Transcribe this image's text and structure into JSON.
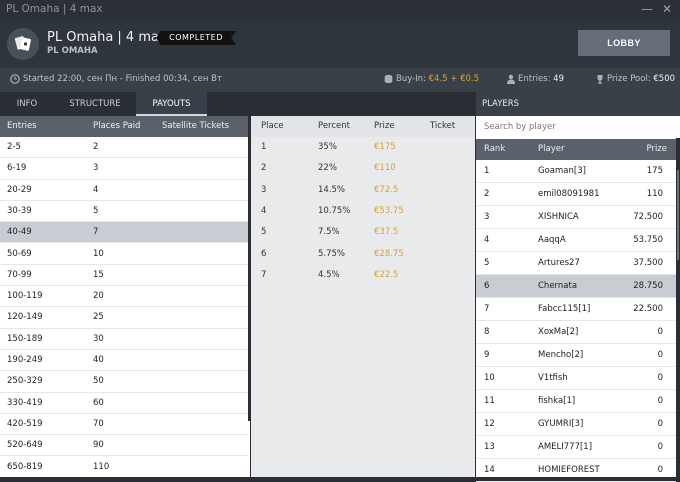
{
  "window": {
    "title": "PL Omaha | 4 max",
    "minimize": "—",
    "close": "✕"
  },
  "header": {
    "name": "PL Omaha | 4 max",
    "subtitle": "PL OMAHA",
    "status": "COMPLETED",
    "lobby_label": "LOBBY"
  },
  "info": {
    "schedule": "Started 22:00, сен Пн  -  Finished 00:34, сен Вт",
    "buyin_label": "Buy-In:",
    "buyin_value": "€4.5 + €0.5",
    "entries_label": "Entries:",
    "entries_value": "49",
    "prize_label": "Prize Pool:",
    "prize_value": "€500"
  },
  "tabs": [
    {
      "label": "INFO"
    },
    {
      "label": "STRUCTURE"
    },
    {
      "label": "PAYOUTS"
    }
  ],
  "payouts_table": {
    "headers": [
      "Entries",
      "Places Paid",
      "Satellite Tickets"
    ],
    "rows": [
      [
        "2-5",
        "2"
      ],
      [
        "6-19",
        "3"
      ],
      [
        "20-29",
        "4"
      ],
      [
        "30-39",
        "5"
      ],
      [
        "40-49",
        "7"
      ],
      [
        "50-69",
        "10"
      ],
      [
        "70-99",
        "15"
      ],
      [
        "100-119",
        "20"
      ],
      [
        "120-149",
        "25"
      ],
      [
        "150-189",
        "30"
      ],
      [
        "190-249",
        "40"
      ],
      [
        "250-329",
        "50"
      ],
      [
        "330-419",
        "60"
      ],
      [
        "420-519",
        "70"
      ],
      [
        "520-649",
        "90"
      ],
      [
        "650-819",
        "110"
      ]
    ],
    "selected_index": 4
  },
  "prize_table": {
    "headers": [
      "Place",
      "Percent",
      "Prize",
      "Ticket"
    ],
    "rows": [
      [
        "1",
        "35%",
        "€175"
      ],
      [
        "2",
        "22%",
        "€110"
      ],
      [
        "3",
        "14.5%",
        "€72.5"
      ],
      [
        "4",
        "10.75%",
        "€53.75"
      ],
      [
        "5",
        "7.5%",
        "€37.5"
      ],
      [
        "6",
        "5.75%",
        "€28.75"
      ],
      [
        "7",
        "4.5%",
        "€22.5"
      ]
    ]
  },
  "players": {
    "title": "PLAYERS",
    "search_placeholder": "Search by player",
    "headers": [
      "Rank",
      "Player",
      "Prize"
    ],
    "rows": [
      [
        "1",
        "Goaman[3]",
        "175"
      ],
      [
        "2",
        "emil08091981",
        "110"
      ],
      [
        "3",
        "XISHNICA",
        "72.500"
      ],
      [
        "4",
        "AaqqA",
        "53.750"
      ],
      [
        "5",
        "Artures27",
        "37.500"
      ],
      [
        "6",
        "Chernata",
        "28.750"
      ],
      [
        "7",
        "Fabcc115[1]",
        "22.500"
      ],
      [
        "8",
        "XoxMa[2]",
        "0"
      ],
      [
        "9",
        "Mencho[2]",
        "0"
      ],
      [
        "10",
        "V1tfish",
        "0"
      ],
      [
        "11",
        "fishka[1]",
        "0"
      ],
      [
        "12",
        "GYUMRI[3]",
        "0"
      ],
      [
        "13",
        "AMELI777[1]",
        "0"
      ],
      [
        "14",
        "HOMIEFOREST",
        "0"
      ]
    ],
    "selected_index": 5
  },
  "colors": {
    "accent_gold": "#d8a336",
    "header_bg": "#2f353d",
    "table_header": "#5a616b",
    "selected_row": "#c9ccd2"
  }
}
